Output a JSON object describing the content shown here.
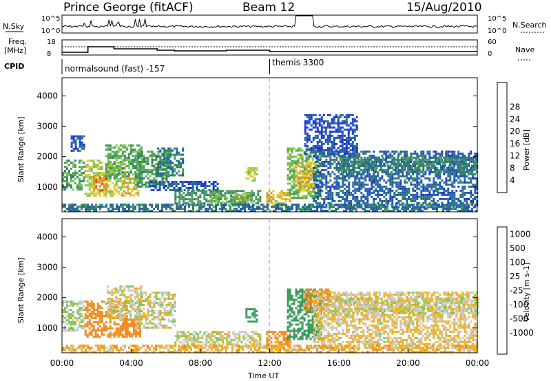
{
  "header": {
    "station": "Prince George (fitACF)",
    "beam": "Beam 12",
    "date": "15/Aug/2010"
  },
  "strip_panels": {
    "nsky": {
      "label": "N.Sky",
      "ticks": [
        "10^5",
        "10^0"
      ]
    },
    "nsearch": {
      "label": "N.Search",
      "ticks": [
        "10^5",
        "10^0"
      ]
    },
    "freq": {
      "label1": "Freq.",
      "label2": "[MHz]",
      "ticks": [
        "18",
        "8"
      ]
    },
    "nave": {
      "label": "Nave",
      "ticks": [
        "60",
        "0"
      ]
    },
    "cpid": {
      "label": "CPID",
      "programs": [
        {
          "name": "normalsound (fast) -157",
          "start_hour": 0,
          "end_hour": 12
        },
        {
          "name": "themis 3300",
          "start_hour": 12,
          "end_hour": 24
        }
      ]
    }
  },
  "chart_data": [
    {
      "type": "heatmap",
      "quantity": "power",
      "xlabel": "",
      "ylabel": "Slant Range [km]",
      "xlim": [
        0,
        24
      ],
      "ylim": [
        180,
        4600
      ],
      "yticks": [
        "1000",
        "2000",
        "3000",
        "4000"
      ],
      "colorbar": {
        "label": "Power [dB]",
        "ticks": [
          "4",
          "8",
          "12",
          "16",
          "20",
          "24",
          "28"
        ],
        "colors": [
          "#1a2ed8",
          "#2058b8",
          "#2f7d6a",
          "#4aa05a",
          "#7cc24a",
          "#e6c828",
          "#f08a1c",
          "#e04a18",
          "#c81414"
        ]
      },
      "regions": [
        {
          "t0": 0,
          "t1": 1.2,
          "r0": 900,
          "r1": 1900,
          "v": 14
        },
        {
          "t0": 0.5,
          "t1": 1.3,
          "r0": 2200,
          "r1": 2700,
          "v": 6
        },
        {
          "t0": 1.3,
          "t1": 3.6,
          "r0": 700,
          "r1": 1900,
          "v": 20
        },
        {
          "t0": 1.8,
          "t1": 2.6,
          "r0": 900,
          "r1": 1400,
          "v": 27
        },
        {
          "t0": 2.5,
          "t1": 4.6,
          "r0": 1300,
          "r1": 2400,
          "v": 15
        },
        {
          "t0": 3.4,
          "t1": 4.4,
          "r0": 700,
          "r1": 1300,
          "v": 22
        },
        {
          "t0": 4.2,
          "t1": 6.2,
          "r0": 1000,
          "r1": 2200,
          "v": 13
        },
        {
          "t0": 5.5,
          "t1": 7,
          "r0": 1400,
          "r1": 2300,
          "v": 10
        },
        {
          "t0": 5,
          "t1": 9,
          "r0": 900,
          "r1": 1200,
          "v": 6
        },
        {
          "t0": 6.5,
          "t1": 11.5,
          "r0": 400,
          "r1": 900,
          "v": 12
        },
        {
          "t0": 8.5,
          "t1": 11,
          "r0": 500,
          "r1": 800,
          "v": 18
        },
        {
          "t0": 10.6,
          "t1": 11.3,
          "r0": 1200,
          "r1": 1650,
          "v": 20
        },
        {
          "t0": 11.8,
          "t1": 13.2,
          "r0": 300,
          "r1": 900,
          "v": 22
        },
        {
          "t0": 13,
          "t1": 15,
          "r0": 600,
          "r1": 2300,
          "v": 17
        },
        {
          "t0": 13.5,
          "t1": 14.5,
          "r0": 900,
          "r1": 1800,
          "v": 24
        },
        {
          "t0": 14,
          "t1": 17,
          "r0": 2000,
          "r1": 3400,
          "v": 5
        },
        {
          "t0": 14.5,
          "t1": 24,
          "r0": 300,
          "r1": 2200,
          "v": 7
        },
        {
          "t0": 16,
          "t1": 24,
          "r0": 1500,
          "r1": 2000,
          "v": 11
        },
        {
          "t0": 0,
          "t1": 24,
          "r0": 180,
          "r1": 450,
          "v": 9
        }
      ]
    },
    {
      "type": "heatmap",
      "quantity": "velocity",
      "xlabel": "Time UT",
      "ylabel": "Slant Range [km]",
      "xlim": [
        0,
        24
      ],
      "ylim": [
        180,
        4600
      ],
      "xticks": [
        "00:00",
        "04:00",
        "08:00",
        "12:00",
        "16:00",
        "20:00",
        "00:00"
      ],
      "yticks": [
        "1000",
        "2000",
        "3000",
        "4000"
      ],
      "colorbar": {
        "label": "Velocity [m s-1]",
        "ticks": [
          "1000",
          "500",
          "100",
          "25",
          "-25",
          "-100",
          "-500",
          "-1000"
        ],
        "colors": [
          "#1a2ed8",
          "#2c6fa0",
          "#3a9a5a",
          "#7ec850",
          "#c8c8c8",
          "#f0b020",
          "#f08a1c",
          "#e04a18",
          "#e01010"
        ]
      },
      "regions": [
        {
          "t0": 0,
          "t1": 1.3,
          "r0": 900,
          "r1": 1900,
          "v": 25
        },
        {
          "t0": 1.3,
          "t1": 3.8,
          "r0": 700,
          "r1": 1900,
          "v": -300
        },
        {
          "t0": 2.6,
          "t1": 4.6,
          "r0": 1300,
          "r1": 2400,
          "v": 0
        },
        {
          "t0": 3.5,
          "t1": 4.5,
          "r0": 700,
          "r1": 1300,
          "v": -300
        },
        {
          "t0": 4.2,
          "t1": 6.5,
          "r0": 1000,
          "r1": 2200,
          "v": 0
        },
        {
          "t0": 6.5,
          "t1": 11.5,
          "r0": 400,
          "r1": 900,
          "v": 0
        },
        {
          "t0": 10.6,
          "t1": 11.3,
          "r0": 1200,
          "r1": 1650,
          "v": 200
        },
        {
          "t0": 11.8,
          "t1": 13.2,
          "r0": 300,
          "r1": 900,
          "v": -150
        },
        {
          "t0": 13,
          "t1": 15,
          "r0": 600,
          "r1": 2300,
          "v": 300
        },
        {
          "t0": 14,
          "t1": 15.5,
          "r0": 1600,
          "r1": 2300,
          "v": -300
        },
        {
          "t0": 14.5,
          "t1": 24,
          "r0": 300,
          "r1": 2200,
          "v": -30
        },
        {
          "t0": 15.5,
          "t1": 24,
          "r0": 1500,
          "r1": 2000,
          "v": 0
        },
        {
          "t0": 0,
          "t1": 24,
          "r0": 180,
          "r1": 450,
          "v": -60
        }
      ]
    }
  ]
}
